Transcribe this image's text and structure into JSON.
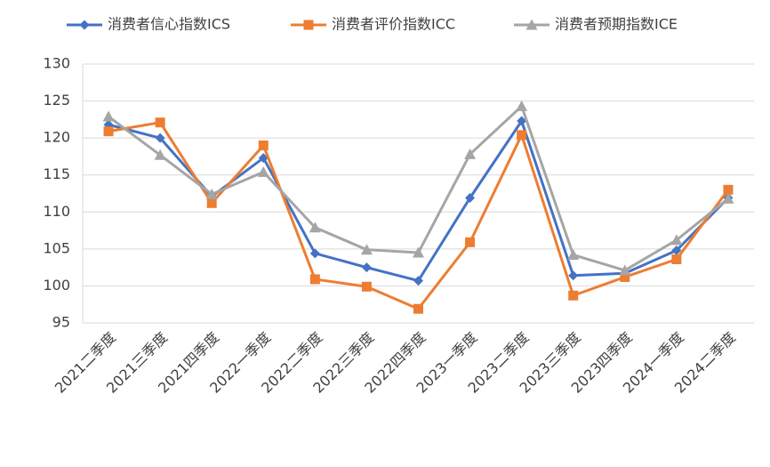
{
  "chart_data": {
    "type": "line",
    "categories": [
      "2021二季度",
      "2021三季度",
      "2021四季度",
      "2022一季度",
      "2022二季度",
      "2022三季度",
      "2022四季度",
      "2023一季度",
      "2023二季度",
      "2023三季度",
      "2023四季度",
      "2024一季度",
      "2024二季度"
    ],
    "series": [
      {
        "name": "消费者信心指数ICS",
        "color": "#4472c4",
        "marker": "diamond",
        "values": [
          121.8,
          120.0,
          112.1,
          117.3,
          104.4,
          102.5,
          100.7,
          111.9,
          122.3,
          101.4,
          101.7,
          104.8,
          111.9
        ]
      },
      {
        "name": "消费者评价指数ICC",
        "color": "#ed7d31",
        "marker": "square",
        "values": [
          120.9,
          122.1,
          111.2,
          119.0,
          100.9,
          99.9,
          96.9,
          105.9,
          120.4,
          98.7,
          101.2,
          103.6,
          113.0
        ]
      },
      {
        "name": "消费者预期指数ICE",
        "color": "#a5a5a5",
        "marker": "triangle",
        "values": [
          122.9,
          117.7,
          112.4,
          115.4,
          107.9,
          104.9,
          104.5,
          117.8,
          124.3,
          104.2,
          102.1,
          106.2,
          111.8
        ]
      }
    ],
    "ylim": [
      95,
      130
    ],
    "yticks": [
      95,
      100,
      105,
      110,
      115,
      120,
      125,
      130
    ],
    "grid": true,
    "legend": "top"
  }
}
